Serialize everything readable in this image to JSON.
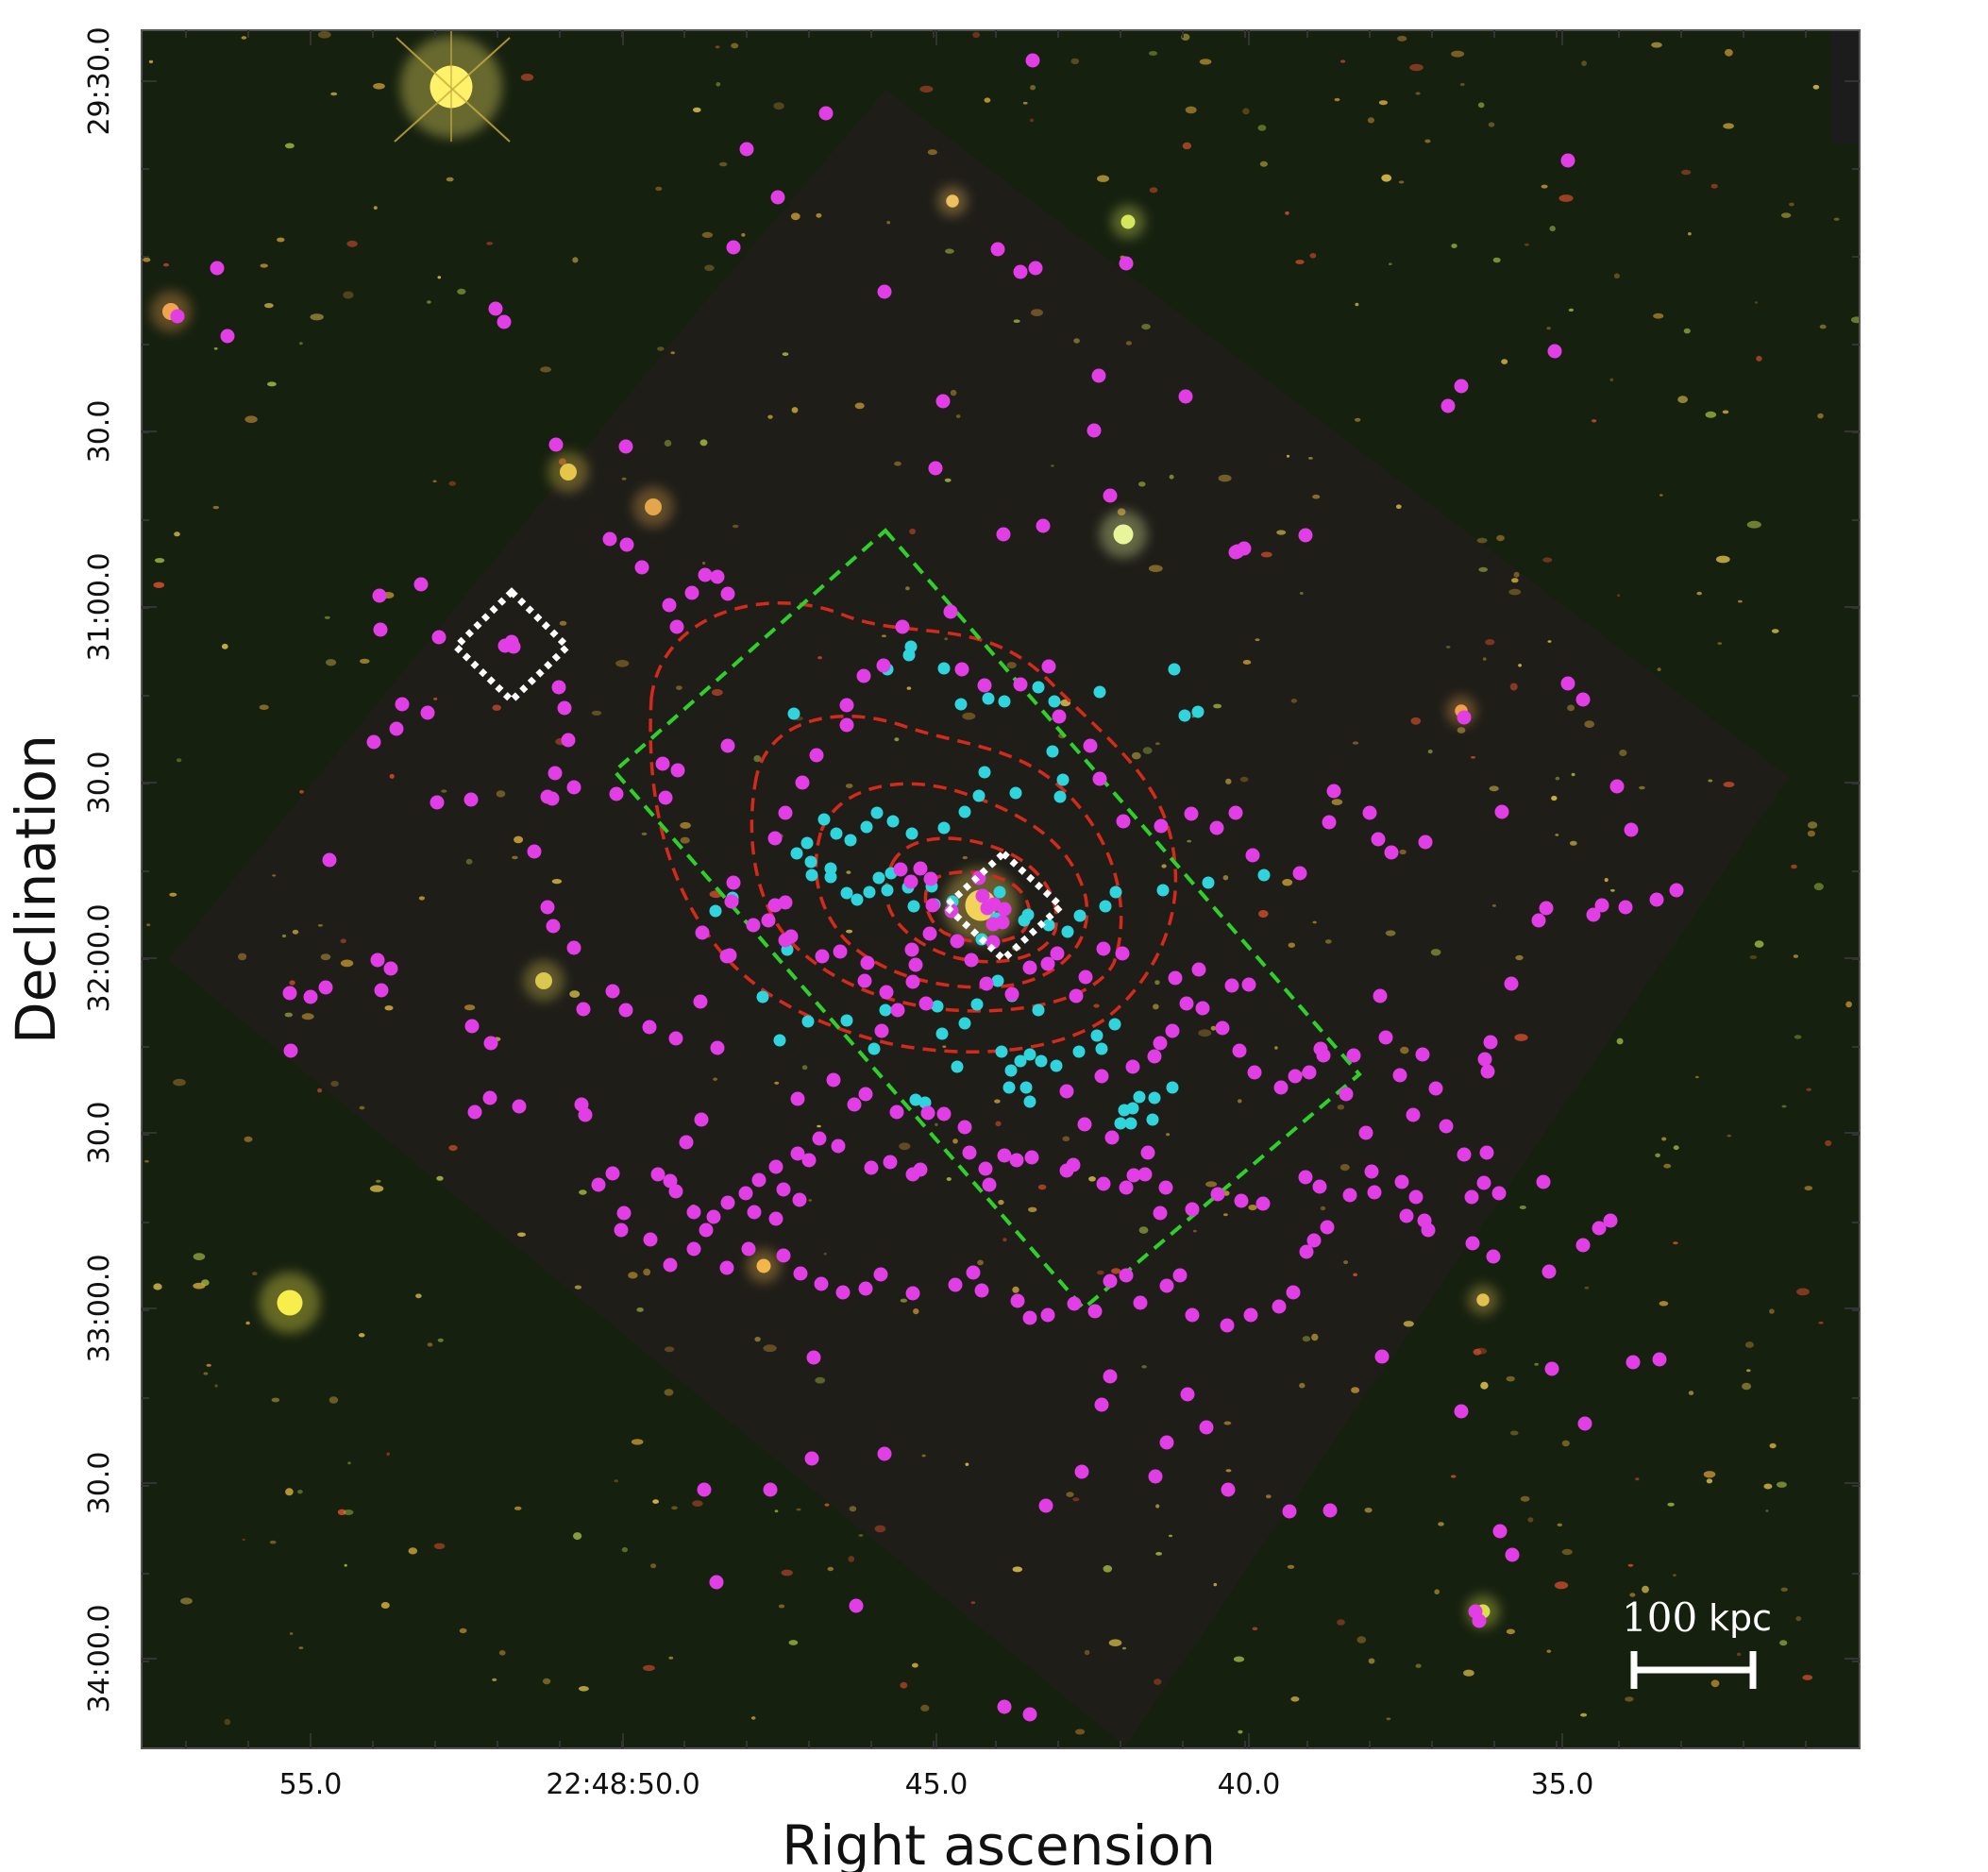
{
  "axes": {
    "xlabel": "Right ascension",
    "ylabel": "Declination",
    "x_ticks": [
      "55.0",
      "22:48:50.0",
      "45.0",
      "40.0",
      "35.0"
    ],
    "y_ticks": [
      "29:30.0",
      "30.0",
      "31:00.0",
      "30.0",
      "32:00.0",
      "30.0",
      "33:00.0",
      "30.0",
      "34:00.0"
    ]
  },
  "scale_bar": {
    "value": "100",
    "unit": "kpc"
  },
  "colors": {
    "sky_background": "#16200f",
    "hst_footprint": "#1e1d18",
    "member_galaxies": "#e23ee6",
    "spectroscopic_sources": "#30d4dc",
    "xray_contours": "#d42a1c",
    "green_region": "#2fd02a",
    "highlight_boxes": "#ffffff"
  }
}
